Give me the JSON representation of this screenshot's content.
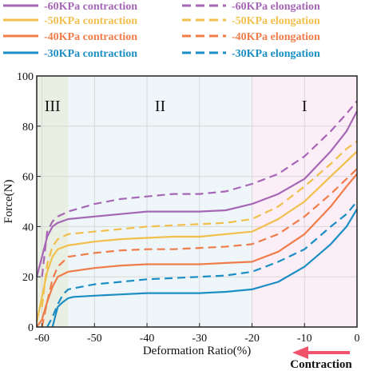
{
  "chart_data": {
    "type": "line",
    "xlabel": "Deformation Ratio(%)",
    "ylabel": "Force(N)",
    "xlim": [
      -61,
      0
    ],
    "ylim": [
      0,
      100
    ],
    "xticks": [
      "-60",
      "-50",
      "-40",
      "-30",
      "-20",
      "-10",
      "0"
    ],
    "yticks": [
      "0",
      "20",
      "40",
      "60",
      "80",
      "100"
    ],
    "grid": true,
    "legend_position": "top",
    "regions": [
      {
        "label": "III",
        "from": -61,
        "to": -55,
        "color": "#e9efe2"
      },
      {
        "label": "II",
        "from": -55,
        "to": -20,
        "color": "#eef6f9"
      },
      {
        "label": "I",
        "from": -20,
        "to": 0,
        "color": "#fbeef6"
      }
    ],
    "series": [
      {
        "name": "-60KPa contraction",
        "style": "solid",
        "color": "#a566b5",
        "x": [
          -61,
          -60,
          -59,
          -58,
          -57,
          -55,
          -50,
          -45,
          -40,
          -35,
          -30,
          -25,
          -20,
          -15,
          -10,
          -5,
          -2,
          0
        ],
        "y": [
          20,
          28,
          36,
          40,
          41.5,
          43,
          44,
          45,
          46,
          46,
          46,
          46.5,
          49,
          53,
          59,
          70,
          78,
          86
        ]
      },
      {
        "name": "-60KPa elongation",
        "style": "dashed",
        "color": "#a566b5",
        "x": [
          -60,
          -59,
          -58,
          -57,
          -55,
          -50,
          -45,
          -40,
          -35,
          -30,
          -25,
          -20,
          -15,
          -10,
          -5,
          -2,
          0
        ],
        "y": [
          20,
          38,
          42,
          44,
          46,
          49,
          51,
          52,
          53,
          53,
          54,
          57,
          61,
          68,
          78,
          85,
          90
        ]
      },
      {
        "name": "-50KPa contraction",
        "style": "solid",
        "color": "#f1bf4c",
        "x": [
          -61,
          -60,
          -59,
          -58,
          -57,
          -55,
          -50,
          -45,
          -40,
          -35,
          -30,
          -25,
          -20,
          -15,
          -10,
          -5,
          -2,
          0
        ],
        "y": [
          2,
          12,
          22,
          28,
          31,
          32.5,
          34,
          35,
          35.5,
          36,
          36,
          37,
          38,
          43,
          50,
          60,
          66,
          70
        ]
      },
      {
        "name": "-50KPa elongation",
        "style": "dashed",
        "color": "#f1bf4c",
        "x": [
          -60,
          -59,
          -58,
          -57,
          -55,
          -50,
          -45,
          -40,
          -35,
          -30,
          -25,
          -20,
          -15,
          -10,
          -5,
          -2,
          0
        ],
        "y": [
          8,
          25,
          32,
          35,
          37,
          38,
          39,
          40,
          40.5,
          41,
          41.5,
          43,
          48,
          56,
          65,
          71,
          74
        ]
      },
      {
        "name": "-40KPa contraction",
        "style": "solid",
        "color": "#f07c4a",
        "x": [
          -61,
          -60,
          -59,
          -58,
          -57,
          -55,
          -50,
          -45,
          -40,
          -35,
          -30,
          -25,
          -20,
          -15,
          -10,
          -5,
          -2,
          0
        ],
        "y": [
          0,
          3,
          10,
          16,
          20,
          22,
          23.5,
          24.5,
          25,
          25,
          25,
          25.5,
          26,
          30,
          37,
          48,
          56,
          61
        ]
      },
      {
        "name": "-40KPa elongation",
        "style": "dashed",
        "color": "#f07c4a",
        "x": [
          -60,
          -59,
          -58,
          -57,
          -55,
          -50,
          -45,
          -40,
          -35,
          -30,
          -25,
          -20,
          -15,
          -10,
          -5,
          -2,
          0
        ],
        "y": [
          0,
          10,
          19,
          24,
          28,
          29.5,
          30.5,
          31,
          31,
          31.5,
          32,
          33,
          37,
          44,
          53,
          59,
          63
        ]
      },
      {
        "name": "-30KPa contraction",
        "style": "solid",
        "color": "#1b8ec4",
        "x": [
          -58,
          -57.5,
          -57,
          -56,
          -55,
          -54,
          -50,
          -45,
          -40,
          -35,
          -30,
          -25,
          -20,
          -15,
          -10,
          -5,
          -2,
          0
        ],
        "y": [
          0,
          4,
          8,
          10,
          11.5,
          12,
          12.5,
          13,
          13.5,
          13.5,
          13.5,
          14,
          15,
          18,
          24,
          33,
          40,
          47
        ]
      },
      {
        "name": "-30KPa elongation",
        "style": "dashed",
        "color": "#1b8ec4",
        "x": [
          -59,
          -58,
          -57,
          -56,
          -55,
          -50,
          -45,
          -40,
          -35,
          -30,
          -25,
          -20,
          -15,
          -10,
          -5,
          -2,
          0
        ],
        "y": [
          0,
          4,
          9,
          13,
          15,
          17,
          18,
          19,
          19.5,
          20,
          20.5,
          22,
          26,
          31,
          40,
          45,
          50
        ]
      }
    ],
    "annotation": {
      "label": "Contraction",
      "arrow": "left",
      "arrow_color": "#f0536b"
    }
  }
}
